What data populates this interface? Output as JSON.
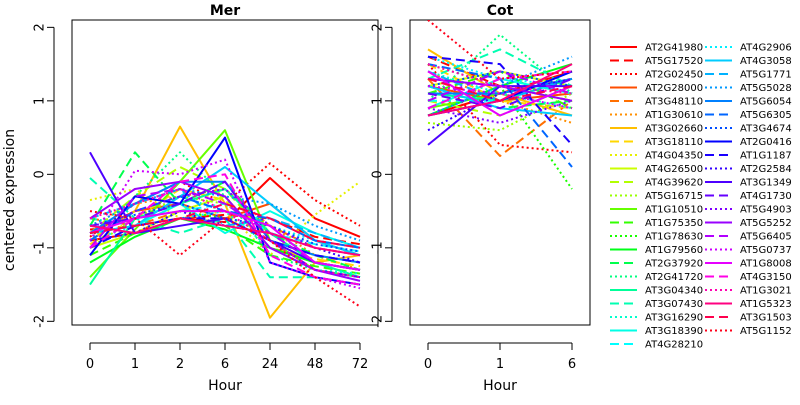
{
  "chart_data": [
    {
      "type": "line",
      "title": "Mer",
      "xlabel": "Hour",
      "ylabel": "centered expression",
      "categories": [
        "0",
        "1",
        "2",
        "6",
        "24",
        "48",
        "72"
      ],
      "ylim": [
        -2.05,
        2.1
      ],
      "yticks": [
        "-2",
        "-1",
        "0",
        "1",
        "2"
      ],
      "grid": false,
      "series": [
        {
          "name": "AT2G41980",
          "values": [
            -0.9,
            -0.8,
            -0.6,
            -0.65,
            -0.05,
            -0.6,
            -0.85
          ]
        },
        {
          "name": "AT5G17520",
          "values": [
            -0.75,
            -0.7,
            -0.6,
            -0.55,
            -0.6,
            -0.85,
            -0.95
          ]
        },
        {
          "name": "AT2G02450",
          "values": [
            -0.85,
            -0.4,
            -0.1,
            -0.4,
            0.15,
            -0.35,
            -0.7
          ]
        },
        {
          "name": "AT2G28000",
          "values": [
            -0.8,
            -0.5,
            -0.4,
            -0.6,
            -0.4,
            -0.9,
            -1.1
          ]
        },
        {
          "name": "AT3G48110",
          "values": [
            -0.6,
            -0.7,
            -0.5,
            -0.5,
            -0.7,
            -1.0,
            -1.1
          ]
        },
        {
          "name": "AT1G30610",
          "values": [
            -0.7,
            -0.4,
            -0.3,
            -0.2,
            -0.7,
            -1.1,
            -1.3
          ]
        },
        {
          "name": "AT3G02660",
          "values": [
            -0.9,
            -0.5,
            0.65,
            -0.4,
            -1.95,
            -1.2,
            -1.1
          ]
        },
        {
          "name": "AT3G18110",
          "values": [
            -0.95,
            -0.6,
            -0.2,
            -0.35,
            -1.0,
            -1.15,
            -1.25
          ]
        },
        {
          "name": "AT4G04350",
          "values": [
            -0.35,
            -0.2,
            -0.6,
            -0.5,
            -1.1,
            -0.55,
            -0.1
          ]
        },
        {
          "name": "AT4G26500",
          "values": [
            -1.0,
            -0.8,
            -0.5,
            -0.3,
            -1.0,
            -1.2,
            -1.3
          ]
        },
        {
          "name": "AT4G39620",
          "values": [
            -0.8,
            -0.3,
            0.1,
            -0.2,
            -0.9,
            -1.1,
            -1.2
          ]
        },
        {
          "name": "AT5G16715",
          "values": [
            -1.0,
            -0.6,
            -0.3,
            -0.4,
            -0.8,
            -1.0,
            -1.1
          ]
        },
        {
          "name": "AT1G10510",
          "values": [
            -1.4,
            -0.75,
            -0.1,
            0.6,
            -0.9,
            -1.3,
            -1.4
          ]
        },
        {
          "name": "AT1G75350",
          "values": [
            -1.1,
            -0.8,
            -0.6,
            -0.7,
            -1.1,
            -1.25,
            -1.35
          ]
        },
        {
          "name": "AT1G78630",
          "values": [
            -0.9,
            -0.8,
            -0.5,
            -0.6,
            -0.9,
            -1.1,
            -1.2
          ]
        },
        {
          "name": "AT1G79560",
          "values": [
            -1.2,
            -0.85,
            -0.6,
            -0.75,
            -1.0,
            -1.2,
            -1.3
          ]
        },
        {
          "name": "AT2G37920",
          "values": [
            -0.7,
            0.3,
            -0.4,
            -0.1,
            -0.8,
            -1.1,
            -1.3
          ]
        },
        {
          "name": "AT2G41720",
          "values": [
            -0.9,
            -0.3,
            0.3,
            -0.3,
            -1.1,
            -1.3,
            -1.4
          ]
        },
        {
          "name": "AT3G04340",
          "values": [
            -1.5,
            -0.6,
            -0.4,
            -0.2,
            -0.8,
            -1.2,
            -1.4
          ]
        },
        {
          "name": "AT3G07430",
          "values": [
            -0.05,
            -0.6,
            -0.8,
            -0.6,
            -1.4,
            -1.4,
            -1.5
          ]
        },
        {
          "name": "AT3G16290",
          "values": [
            -0.6,
            -0.7,
            -0.3,
            -0.5,
            -1.0,
            -1.3,
            -1.35
          ]
        },
        {
          "name": "AT3G18390",
          "values": [
            -0.8,
            -0.7,
            -0.4,
            -0.8,
            -0.5,
            -0.8,
            -1.0
          ]
        },
        {
          "name": "AT4G28210",
          "values": [
            -1.0,
            -0.6,
            -0.5,
            -0.4,
            -0.8,
            -0.95,
            -1.05
          ]
        },
        {
          "name": "AT4G2906",
          "values": [
            -0.9,
            -0.7,
            -0.6,
            -0.5,
            -0.7,
            -0.9,
            -1.0
          ]
        },
        {
          "name": "AT4G3058",
          "values": [
            -0.8,
            -0.7,
            -0.3,
            0.1,
            -0.4,
            -0.9,
            -1.1
          ]
        },
        {
          "name": "AT5G1771",
          "values": [
            -0.6,
            -0.4,
            -0.2,
            -0.7,
            -0.6,
            -0.8,
            -1.0
          ]
        },
        {
          "name": "AT5G5028",
          "values": [
            -0.7,
            -0.4,
            -0.2,
            -0.3,
            -0.4,
            -0.7,
            -0.9
          ]
        },
        {
          "name": "AT5G6054",
          "values": [
            -0.8,
            -0.4,
            -0.1,
            -0.1,
            -0.9,
            -1.1,
            -1.2
          ]
        },
        {
          "name": "AT5G6305",
          "values": [
            -0.9,
            -0.5,
            -0.3,
            -0.5,
            -0.6,
            -0.9,
            -1.0
          ]
        },
        {
          "name": "AT3G4674",
          "values": [
            -0.7,
            -0.55,
            -0.4,
            -0.6,
            -0.7,
            -0.95,
            -1.05
          ]
        },
        {
          "name": "AT2G0416",
          "values": [
            -1.1,
            -0.3,
            -0.4,
            0.5,
            -1.2,
            -1.4,
            -1.5
          ]
        },
        {
          "name": "AT1G1187",
          "values": [
            -1.0,
            -0.7,
            -0.6,
            -0.6,
            -0.9,
            -1.1,
            -1.2
          ]
        },
        {
          "name": "AT2G2584",
          "values": [
            -0.9,
            -0.8,
            -0.5,
            -0.7,
            -0.8,
            -1.0,
            -1.2
          ]
        },
        {
          "name": "AT3G1349",
          "values": [
            0.3,
            -0.8,
            -0.7,
            -0.6,
            -0.9,
            -1.2,
            -1.3
          ]
        },
        {
          "name": "AT4G1730",
          "values": [
            -0.7,
            -0.6,
            -0.4,
            -0.1,
            -0.9,
            -1.3,
            -1.4
          ]
        },
        {
          "name": "AT5G4903",
          "values": [
            -0.8,
            -0.5,
            -0.3,
            -0.2,
            -0.7,
            -1.0,
            -1.1
          ]
        },
        {
          "name": "AT5G5252",
          "values": [
            -0.6,
            -0.2,
            -0.1,
            -0.3,
            -1.0,
            -1.3,
            -1.45
          ]
        },
        {
          "name": "AT5G6405",
          "values": [
            -1.0,
            -0.3,
            -0.2,
            -0.4,
            -0.8,
            -1.2,
            -1.3
          ]
        },
        {
          "name": "AT5G0737",
          "values": [
            -0.9,
            0.05,
            0.0,
            0.2,
            -1.2,
            -1.4,
            -1.55
          ]
        },
        {
          "name": "AT1G8008",
          "values": [
            -0.8,
            -0.6,
            -0.5,
            -0.5,
            -0.7,
            -1.2,
            -1.3
          ]
        },
        {
          "name": "AT4G3150",
          "values": [
            -1.0,
            -0.6,
            -0.1,
            0.0,
            -1.1,
            -1.4,
            -1.5
          ]
        },
        {
          "name": "AT1G3021",
          "values": [
            -0.6,
            -0.4,
            -0.2,
            -0.5,
            -0.9,
            -1.3,
            -1.4
          ]
        },
        {
          "name": "AT1G5323",
          "values": [
            -0.7,
            -0.8,
            -0.6,
            -0.7,
            -0.8,
            -1.0,
            -1.1
          ]
        },
        {
          "name": "AT3G1503",
          "values": [
            -0.8,
            -0.7,
            -0.6,
            -0.4,
            -0.6,
            -0.9,
            -1.0
          ]
        },
        {
          "name": "AT5G1152",
          "values": [
            -0.5,
            -0.6,
            -1.1,
            -0.6,
            -0.9,
            -1.4,
            -1.8
          ]
        }
      ]
    },
    {
      "type": "line",
      "title": "Cot",
      "xlabel": "Hour",
      "categories": [
        "0",
        "1",
        "6"
      ],
      "ylim": [
        -2.05,
        2.1
      ],
      "yticks": [
        "-2",
        "-1",
        "0",
        "1",
        "2"
      ],
      "grid": false,
      "series": [
        {
          "name": "AT2G41980",
          "values": [
            0.8,
            1.1,
            1.4
          ]
        },
        {
          "name": "AT5G17520",
          "values": [
            1.6,
            1.2,
            1.0
          ]
        },
        {
          "name": "AT2G02450",
          "values": [
            1.5,
            0.4,
            0.3
          ]
        },
        {
          "name": "AT2G28000",
          "values": [
            1.2,
            1.0,
            1.1
          ]
        },
        {
          "name": "AT3G48110",
          "values": [
            1.3,
            0.25,
            1.0
          ]
        },
        {
          "name": "AT1G30610",
          "values": [
            1.4,
            1.0,
            0.7
          ]
        },
        {
          "name": "AT3G02660",
          "values": [
            1.7,
            1.1,
            0.8
          ]
        },
        {
          "name": "AT3G18110",
          "values": [
            1.5,
            1.0,
            0.9
          ]
        },
        {
          "name": "AT4G04350",
          "values": [
            1.3,
            1.2,
            1.0
          ]
        },
        {
          "name": "AT4G26500",
          "values": [
            1.2,
            1.4,
            1.2
          ]
        },
        {
          "name": "AT4G39620",
          "values": [
            1.0,
            0.8,
            1.2
          ]
        },
        {
          "name": "AT5G16715",
          "values": [
            0.7,
            0.6,
            1.1
          ]
        },
        {
          "name": "AT1G10510",
          "values": [
            0.9,
            1.1,
            1.3
          ]
        },
        {
          "name": "AT1G75350",
          "values": [
            1.1,
            1.4,
            0.9
          ]
        },
        {
          "name": "AT1G78630",
          "values": [
            1.5,
            1.2,
            -0.2
          ]
        },
        {
          "name": "AT1G79560",
          "values": [
            0.8,
            1.2,
            1.5
          ]
        },
        {
          "name": "AT2G37920",
          "values": [
            1.2,
            0.9,
            1.0
          ]
        },
        {
          "name": "AT2G41720",
          "values": [
            1.0,
            1.9,
            1.1
          ]
        },
        {
          "name": "AT3G04340",
          "values": [
            1.1,
            1.0,
            1.3
          ]
        },
        {
          "name": "AT3G07430",
          "values": [
            1.3,
            1.7,
            1.2
          ]
        },
        {
          "name": "AT3G16290",
          "values": [
            1.4,
            1.1,
            0.9
          ]
        },
        {
          "name": "AT3G18390",
          "values": [
            0.9,
            1.3,
            1.1
          ]
        },
        {
          "name": "AT4G28210",
          "values": [
            1.0,
            1.0,
            1.4
          ]
        },
        {
          "name": "AT4G2906",
          "values": [
            1.6,
            1.3,
            1.2
          ]
        },
        {
          "name": "AT4G3058",
          "values": [
            1.2,
            0.9,
            0.8
          ]
        },
        {
          "name": "AT5G1771",
          "values": [
            1.4,
            1.0,
            1.3
          ]
        },
        {
          "name": "AT5G5028",
          "values": [
            0.8,
            1.2,
            1.6
          ]
        },
        {
          "name": "AT5G6054",
          "values": [
            1.1,
            1.1,
            1.3
          ]
        },
        {
          "name": "AT5G6305",
          "values": [
            1.5,
            1.3,
            0.1
          ]
        },
        {
          "name": "AT3G4674",
          "values": [
            1.2,
            1.4,
            1.2
          ]
        },
        {
          "name": "AT2G0416",
          "values": [
            0.8,
            1.0,
            1.4
          ]
        },
        {
          "name": "AT1G1187",
          "values": [
            1.6,
            1.5,
            0.4
          ]
        },
        {
          "name": "AT2G2584",
          "values": [
            0.6,
            1.1,
            1.3
          ]
        },
        {
          "name": "AT3G1349",
          "values": [
            0.4,
            1.2,
            1.2
          ]
        },
        {
          "name": "AT4G1730",
          "values": [
            1.1,
            0.9,
            1.3
          ]
        },
        {
          "name": "AT5G4903",
          "values": [
            0.9,
            0.7,
            1.0
          ]
        },
        {
          "name": "AT5G5252",
          "values": [
            1.3,
            1.2,
            1.0
          ]
        },
        {
          "name": "AT5G6405",
          "values": [
            1.0,
            1.4,
            1.1
          ]
        },
        {
          "name": "AT5G0737",
          "values": [
            1.2,
            1.1,
            0.9
          ]
        },
        {
          "name": "AT1G8008",
          "values": [
            1.4,
            0.8,
            1.2
          ]
        },
        {
          "name": "AT4G3150",
          "values": [
            0.9,
            1.3,
            1.4
          ]
        },
        {
          "name": "AT1G3021",
          "values": [
            1.5,
            1.2,
            1.1
          ]
        },
        {
          "name": "AT1G5323",
          "values": [
            0.8,
            1.0,
            1.5
          ]
        },
        {
          "name": "AT3G1503",
          "values": [
            1.3,
            1.0,
            1.2
          ]
        },
        {
          "name": "AT5G1152",
          "values": [
            2.1,
            1.3,
            1.4
          ]
        }
      ]
    }
  ],
  "legend": {
    "placement": "right",
    "colors": [
      "#ff0000",
      "#ff0000",
      "#ff0000",
      "#ff4d00",
      "#ff6f00",
      "#ff8f00",
      "#ffbf00",
      "#ffd700",
      "#e6f000",
      "#ccff00",
      "#b2ff00",
      "#99ff00",
      "#66ff00",
      "#33ff00",
      "#1aff00",
      "#00ff1a",
      "#00ff4d",
      "#00ff80",
      "#00ff99",
      "#00ffb2",
      "#00ffcc",
      "#00ffe6",
      "#00ffff",
      "#00f0ff",
      "#00ccff",
      "#00b2ff",
      "#0099ff",
      "#0080ff",
      "#0066ff",
      "#004dff",
      "#0000ff",
      "#1a00ff",
      "#3300ff",
      "#4d00ff",
      "#6600ff",
      "#8000ff",
      "#9900ff",
      "#b200ff",
      "#cc00ff",
      "#e600ff",
      "#ff00e6",
      "#ff00b2",
      "#ff0080",
      "#ff004d",
      "#ff001a"
    ],
    "styles": [
      "solid",
      "dashed",
      "dotted"
    ]
  }
}
